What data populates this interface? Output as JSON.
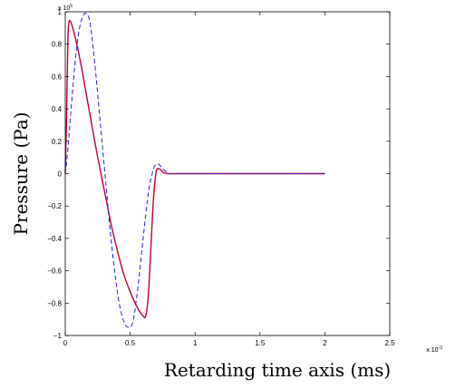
{
  "chart_data": {
    "type": "line",
    "title": "",
    "xlabel": "Retarding time axis (ms)",
    "ylabel": "Pressure (Pa)",
    "xlim": [
      0,
      2.5
    ],
    "ylim": [
      -1,
      1
    ],
    "x_exponent_base": "x 10",
    "x_exponent_power": "-3",
    "y_exponent_base": "x 10",
    "y_exponent_power": "5",
    "x_ticks": [
      0,
      0.5,
      1,
      1.5,
      2,
      2.5
    ],
    "x_tick_labels": [
      "0",
      "0.5",
      "1",
      "1.5",
      "2",
      "2.5"
    ],
    "y_ticks": [
      -1,
      -0.8,
      -0.6,
      -0.4,
      -0.2,
      0,
      0.2,
      0.4,
      0.6,
      0.8,
      1
    ],
    "y_tick_labels": [
      "−1",
      "−0.8",
      "−0.6",
      "−0.4",
      "−0.2",
      "0",
      "0.2",
      "0.4",
      "0.6",
      "0.8",
      "1"
    ],
    "grid": false,
    "series": [
      {
        "style": "solid",
        "color": "#c0003a",
        "x": [
          0,
          0.01,
          0.02,
          0.03,
          0.05,
          0.08,
          0.12,
          0.16,
          0.2,
          0.25,
          0.3,
          0.35,
          0.4,
          0.45,
          0.5,
          0.55,
          0.58,
          0.6,
          0.62,
          0.64,
          0.66,
          0.68,
          0.7,
          0.72,
          0.74,
          0.76,
          0.8,
          0.85,
          0.9,
          1.0,
          1.5,
          2.0
        ],
        "y": [
          0,
          0.35,
          0.82,
          0.94,
          0.92,
          0.83,
          0.68,
          0.5,
          0.32,
          0.1,
          -0.1,
          -0.3,
          -0.47,
          -0.62,
          -0.73,
          -0.82,
          -0.86,
          -0.88,
          -0.88,
          -0.75,
          -0.45,
          -0.15,
          0.01,
          0.03,
          0.02,
          0.005,
          0,
          0,
          0,
          0,
          0,
          0
        ]
      },
      {
        "style": "dashed",
        "color": "#2323d0",
        "x": [
          0,
          0.02,
          0.05,
          0.08,
          0.11,
          0.14,
          0.16,
          0.18,
          0.2,
          0.23,
          0.26,
          0.3,
          0.34,
          0.38,
          0.42,
          0.46,
          0.49,
          0.51,
          0.53,
          0.56,
          0.6,
          0.64,
          0.68,
          0.71,
          0.73,
          0.75,
          0.78,
          0.8,
          0.85,
          0.9,
          1.0,
          1.5,
          2.0
        ],
        "y": [
          0,
          0.15,
          0.45,
          0.72,
          0.9,
          0.98,
          0.99,
          0.97,
          0.88,
          0.66,
          0.4,
          0.05,
          -0.3,
          -0.6,
          -0.82,
          -0.93,
          -0.95,
          -0.94,
          -0.88,
          -0.7,
          -0.4,
          -0.12,
          0.03,
          0.06,
          0.05,
          0.03,
          0.01,
          0,
          0,
          0,
          0,
          0,
          0
        ]
      }
    ]
  }
}
